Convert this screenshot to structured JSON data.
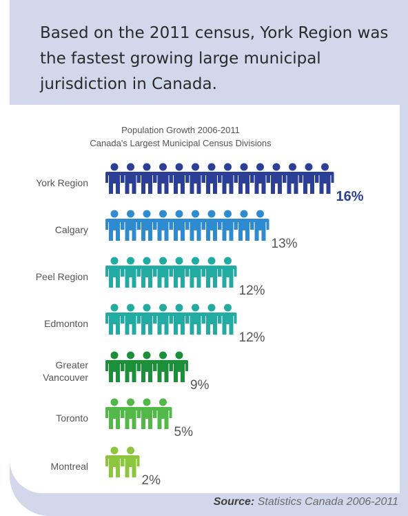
{
  "headline": "Based on the 2011 census, York Region was the fastest growing large municipal jurisdiction in Canada.",
  "source": {
    "label": "Source:",
    "text": " Statistics Canada 2006-2011"
  },
  "chart_data": {
    "type": "bar",
    "title": "Population Growth 2006-2011",
    "subtitle": "Canada's Largest Municipal Census Divisions",
    "xlabel": "",
    "ylabel": "",
    "categories": [
      [
        "York Region"
      ],
      [
        "Calgary"
      ],
      [
        "Peel Region"
      ],
      [
        "Edmonton"
      ],
      [
        "Greater",
        "Vancouver"
      ],
      [
        "Toronto"
      ],
      [
        "Montreal"
      ]
    ],
    "values": [
      16,
      13,
      12,
      12,
      9,
      5,
      2
    ],
    "value_labels": [
      "16%",
      "13%",
      "12%",
      "12%",
      "9%",
      "5%",
      "2%"
    ],
    "icon_counts": [
      14,
      10,
      8,
      8,
      5,
      4,
      2
    ],
    "icon": "person-icon",
    "colors": [
      "#2b3f96",
      "#2e8bd0",
      "#21aba2",
      "#21aba2",
      "#1c8f3a",
      "#52b848",
      "#8cc63f"
    ],
    "highlight_label_color": "#2b3f96",
    "label_color": "#555555"
  }
}
